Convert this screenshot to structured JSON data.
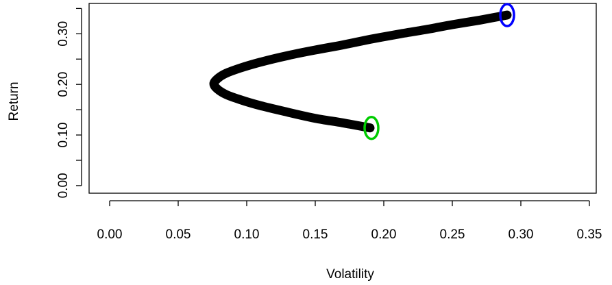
{
  "chart_data": {
    "type": "line",
    "title": "",
    "xlabel": "Volatility",
    "ylabel": "Return",
    "xlim": [
      -0.015,
      0.355
    ],
    "ylim": [
      -0.015,
      0.36
    ],
    "x_ticks": [
      0.0,
      0.05,
      0.1,
      0.15,
      0.2,
      0.25,
      0.3,
      0.35
    ],
    "x_tick_labels": [
      "0.00",
      "0.05",
      "0.10",
      "0.15",
      "0.20",
      "0.25",
      "0.30",
      "0.35"
    ],
    "y_ticks": [
      0.0,
      0.05,
      0.1,
      0.15,
      0.2,
      0.25,
      0.3,
      0.35
    ],
    "y_tick_labels": [
      "0.00",
      "",
      "0.10",
      "",
      "0.20",
      "",
      "0.30",
      ""
    ],
    "grid": false,
    "series": [
      {
        "color": "#000000",
        "x": [
          0.19,
          0.17,
          0.15,
          0.13,
          0.11,
          0.095,
          0.085,
          0.079,
          0.076,
          0.079,
          0.085,
          0.095,
          0.11,
          0.13,
          0.15,
          0.17,
          0.19,
          0.21,
          0.23,
          0.25,
          0.27,
          0.29
        ],
        "y": [
          0.114,
          0.124,
          0.133,
          0.145,
          0.158,
          0.17,
          0.18,
          0.19,
          0.201,
          0.212,
          0.222,
          0.232,
          0.244,
          0.257,
          0.268,
          0.278,
          0.289,
          0.299,
          0.308,
          0.318,
          0.327,
          0.337
        ]
      }
    ],
    "markers": [
      {
        "x": 0.191,
        "y": 0.114,
        "color": "#00cc00"
      },
      {
        "x": 0.29,
        "y": 0.337,
        "color": "#0000ff"
      }
    ]
  }
}
